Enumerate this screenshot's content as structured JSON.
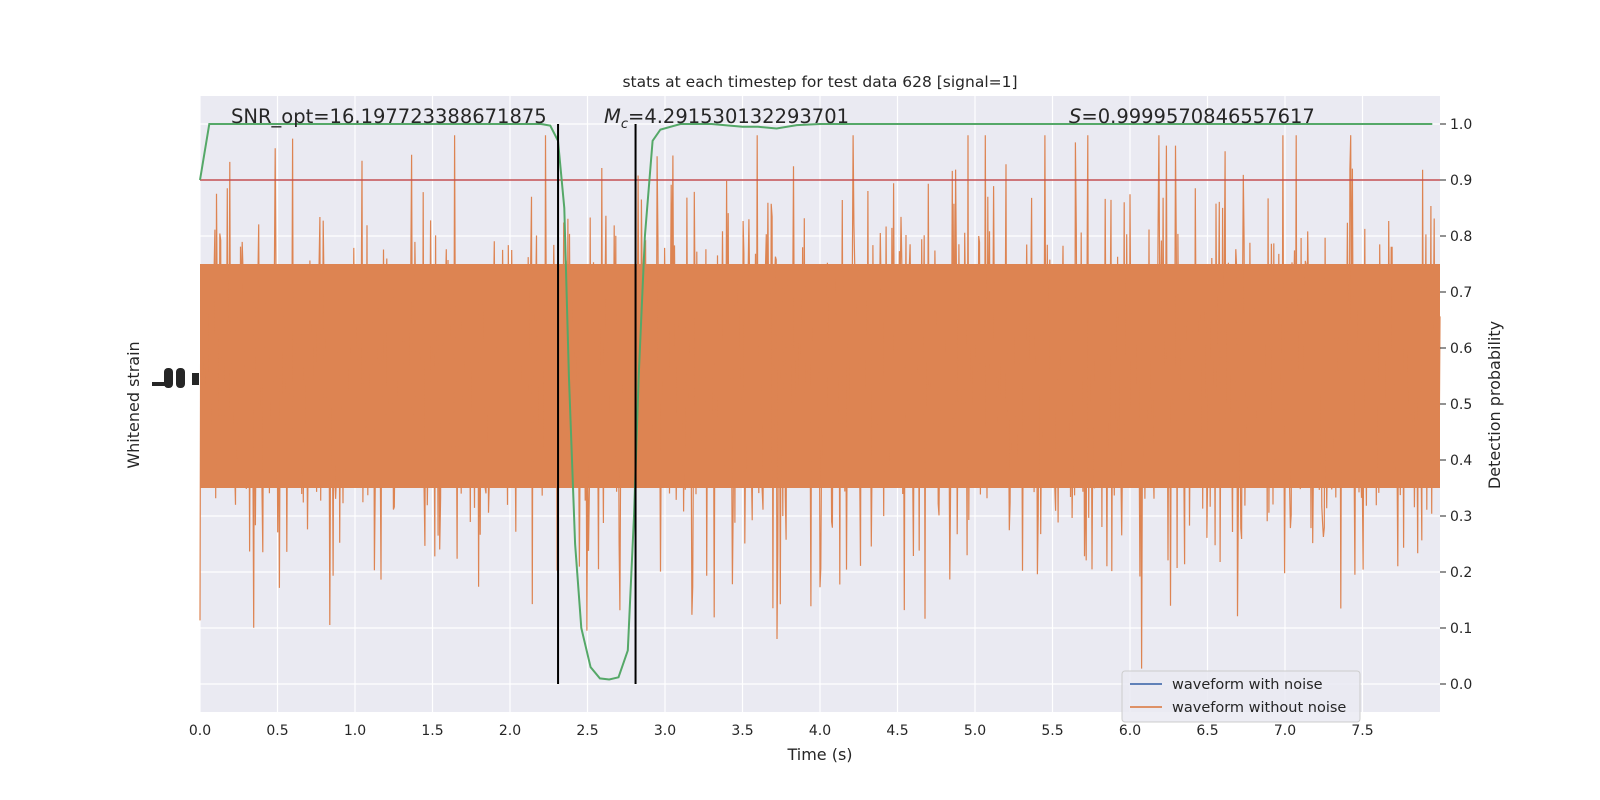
{
  "chart_data": {
    "type": "line",
    "title": "stats at each timestep for test data 628 [signal=1]",
    "xlabel": "Time (s)",
    "ylabel_left": "Whitened strain",
    "ylabel_right": "Detection probability",
    "xlim": [
      0.0,
      8.0
    ],
    "ylim_right": [
      -0.05,
      1.05
    ],
    "x_ticks": [
      "0.0",
      "0.5",
      "1.0",
      "1.5",
      "2.0",
      "2.5",
      "3.0",
      "3.5",
      "4.0",
      "4.5",
      "5.0",
      "5.5",
      "6.0",
      "6.5",
      "7.0",
      "7.5"
    ],
    "y_ticks_right": [
      "0.0",
      "0.1",
      "0.2",
      "0.3",
      "0.4",
      "0.5",
      "0.6",
      "0.7",
      "0.8",
      "0.9",
      "1.0"
    ],
    "grid": true,
    "legend_position": "lower right",
    "annotations": {
      "snr": "SNR_opt=16.197723388671875",
      "mc_symbol": "M",
      "mc_subscript": "c",
      "mc_value": "=4.291530132293701",
      "s_symbol": "S",
      "s_value": "=0.9999570846557617"
    },
    "vertical_lines_x": [
      2.31,
      2.81
    ],
    "threshold": 0.9,
    "series": [
      {
        "name": "waveform with noise",
        "color": "#4c72b0",
        "values_note": "whitened strain (noise); hidden underneath orange trace"
      },
      {
        "name": "waveform without noise",
        "color": "#dd8452",
        "band_center_prob": 0.55,
        "core_band_prob": [
          0.35,
          0.75
        ],
        "spike_extent_prob": [
          0.0,
          0.98
        ]
      },
      {
        "name": "",
        "color": "#55a868",
        "x": [
          0.0,
          0.06,
          0.5,
          1.0,
          1.5,
          2.0,
          2.2,
          2.26,
          2.31,
          2.35,
          2.38,
          2.42,
          2.46,
          2.52,
          2.58,
          2.64,
          2.7,
          2.76,
          2.8,
          2.83,
          2.87,
          2.92,
          2.97,
          3.1,
          3.3,
          3.5,
          3.6,
          3.72,
          3.85,
          4.0,
          5.0,
          6.0,
          7.0,
          7.95
        ],
        "y": [
          0.9,
          1.0,
          1.0,
          1.0,
          1.0,
          1.0,
          1.0,
          0.997,
          0.97,
          0.85,
          0.55,
          0.25,
          0.1,
          0.03,
          0.01,
          0.008,
          0.012,
          0.06,
          0.3,
          0.55,
          0.8,
          0.97,
          0.99,
          1.0,
          1.0,
          0.995,
          0.995,
          0.992,
          0.998,
          1.0,
          1.0,
          1.0,
          1.0,
          1.0
        ]
      }
    ],
    "threshold_color": "#c44e52",
    "vline_color": "#000000"
  }
}
